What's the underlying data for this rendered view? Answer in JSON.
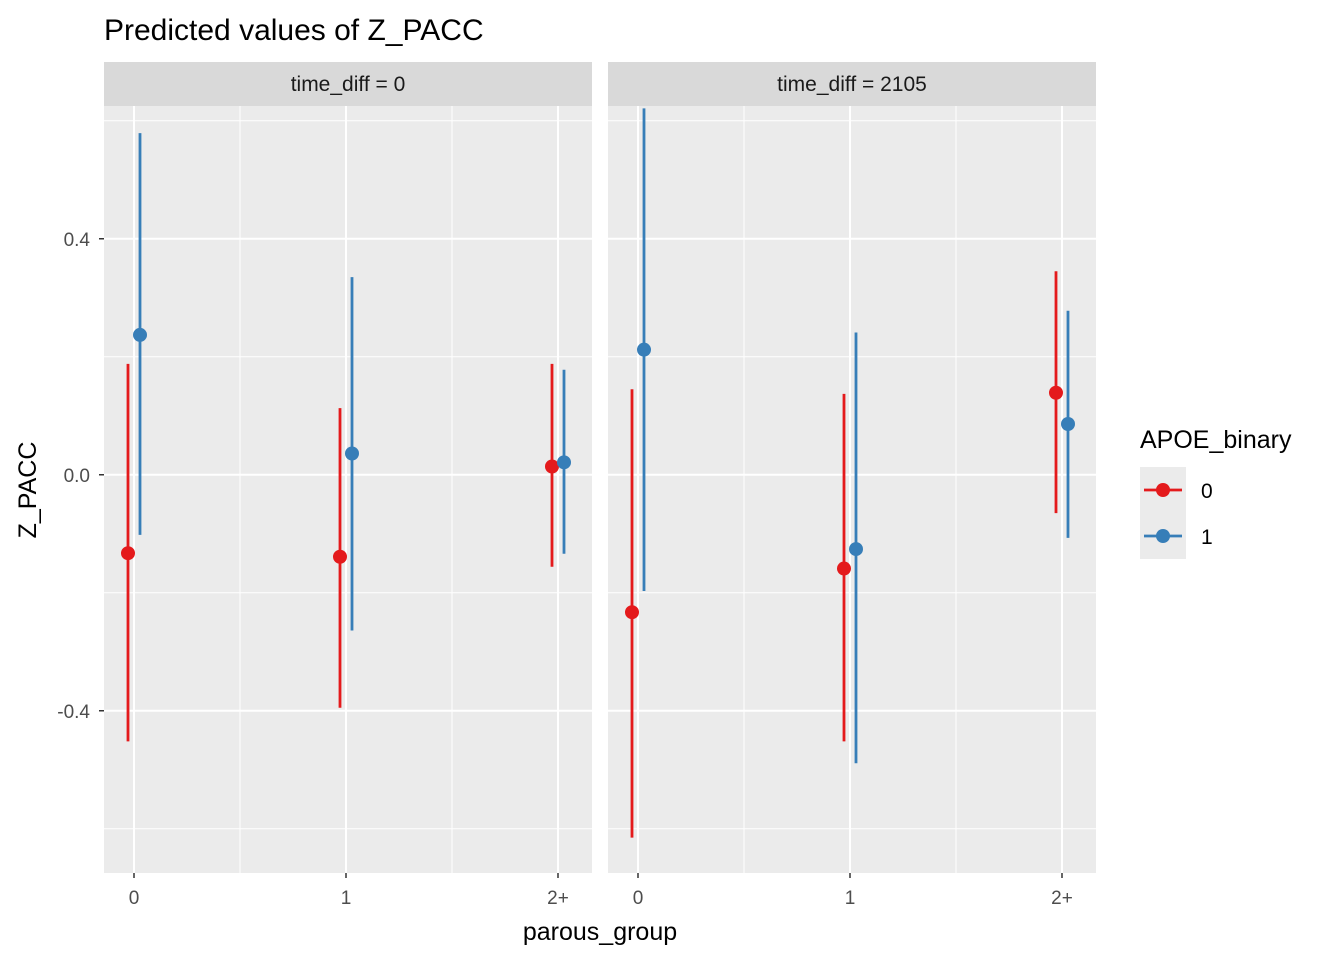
{
  "chart_data": {
    "type": "scatter",
    "title": "Predicted values of Z_PACC",
    "xlabel": "parous_group",
    "ylabel": "Z_PACC",
    "categories": [
      "0",
      "1",
      "2+"
    ],
    "ylim": [
      -0.675,
      0.625
    ],
    "yticks": [
      -0.4,
      0.0,
      0.4
    ],
    "yticklabels": [
      "-0.4",
      "0.0",
      "0.4"
    ],
    "grid": true,
    "legend": {
      "title": "APOE_binary",
      "placement": "right",
      "entries": [
        "0",
        "1"
      ]
    },
    "series_colors": {
      "0": "#E41A1C",
      "1": "#377EB8"
    },
    "panels": [
      {
        "label": "time_diff = 0",
        "series": [
          {
            "name": "0",
            "values": [
              -0.133,
              -0.139,
              0.014
            ],
            "lower": [
              -0.452,
              -0.395,
              -0.156
            ],
            "upper": [
              0.188,
              0.113,
              0.188
            ]
          },
          {
            "name": "1",
            "values": [
              0.237,
              0.036,
              0.021
            ],
            "lower": [
              -0.102,
              -0.264,
              -0.134
            ],
            "upper": [
              0.579,
              0.335,
              0.178
            ]
          }
        ]
      },
      {
        "label": "time_diff = 2105",
        "series": [
          {
            "name": "0",
            "values": [
              -0.233,
              -0.159,
              0.139
            ],
            "lower": [
              -0.615,
              -0.452,
              -0.065
            ],
            "upper": [
              0.145,
              0.137,
              0.345
            ]
          },
          {
            "name": "1",
            "values": [
              0.212,
              -0.126,
              0.086
            ],
            "lower": [
              -0.197,
              -0.489,
              -0.107
            ],
            "upper": [
              0.621,
              0.241,
              0.278
            ]
          }
        ]
      }
    ]
  }
}
